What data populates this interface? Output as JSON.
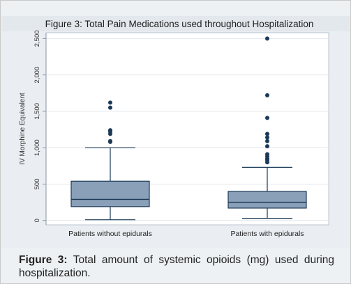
{
  "caption": {
    "label": "Figure 3:",
    "text": " Total amount of systemic opioids (mg) used during hospitalization."
  },
  "colors": {
    "title_bg": "#e3e8ed",
    "chart_outer_bg": "#eaeef2",
    "plot_bg": "#ffffff",
    "box_fill": "#8aa0b8",
    "box_stroke": "#1c3a57",
    "outlier": "#1c3a57"
  },
  "chart_data": {
    "type": "box",
    "title": "Figure 3: Total Pain Medications used throughout Hospitalization",
    "ylabel": "IV Morphine Equivalent",
    "xlabel": "",
    "ylim": [
      -60,
      2580
    ],
    "yticks": [
      0,
      500,
      1000,
      1500,
      2000,
      2500
    ],
    "ytick_labels": [
      "0",
      "500",
      "1,000",
      "1,500",
      "2,000",
      "2,500"
    ],
    "grid": true,
    "categories": [
      "Patients without epidurals",
      "Patients with epidurals"
    ],
    "boxes": [
      {
        "whisker_low": 10,
        "q1": 190,
        "median": 290,
        "q3": 540,
        "whisker_high": 1000,
        "outliers": [
          1080,
          1090,
          1190,
          1220,
          1240,
          1550,
          1620
        ]
      },
      {
        "whisker_low": 30,
        "q1": 170,
        "median": 250,
        "q3": 400,
        "whisker_high": 730,
        "outliers": [
          800,
          830,
          850,
          880,
          910,
          1020,
          1090,
          1140,
          1190,
          1410,
          1720,
          2500
        ]
      }
    ]
  }
}
